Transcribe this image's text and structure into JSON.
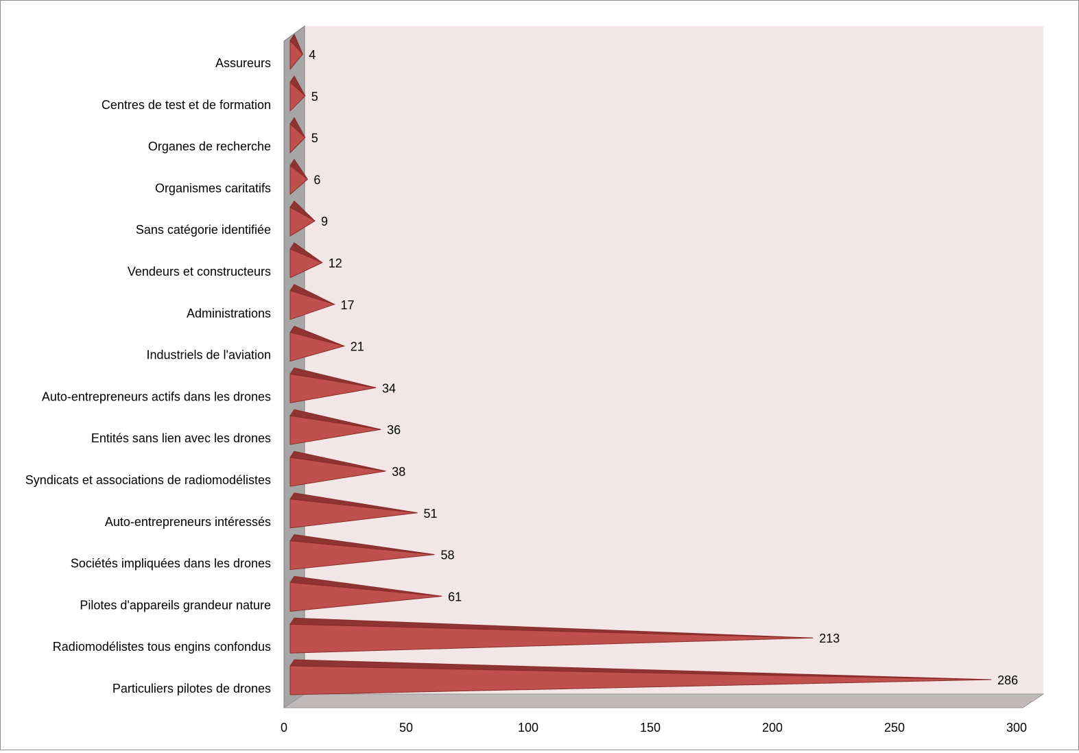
{
  "chart_data": {
    "type": "bar",
    "orientation": "horizontal",
    "style": "3d-cone",
    "title": "",
    "xlabel": "",
    "ylabel": "",
    "categories": [
      "Particuliers pilotes de drones",
      "Radiomodélistes tous engins confondus",
      "Pilotes d'appareils grandeur nature",
      "Sociétés impliquées dans les drones",
      "Auto-entrepreneurs intéressés",
      "Syndicats et associations de radiomodélistes",
      "Entités sans lien avec les drones",
      "Auto-entrepreneurs actifs dans les drones",
      "Industriels de l'aviation",
      "Administrations",
      "Vendeurs et constructeurs",
      "Sans catégorie identifiée",
      "Organismes caritatifs",
      "Organes de recherche",
      "Centres de test et de formation",
      "Assureurs"
    ],
    "values": [
      286,
      213,
      61,
      58,
      51,
      38,
      36,
      34,
      21,
      17,
      12,
      9,
      6,
      5,
      5,
      4
    ],
    "xlim": [
      0,
      300
    ],
    "xticks": [
      0,
      50,
      100,
      150,
      200,
      250,
      300
    ],
    "grid": false,
    "legend": "none",
    "colors": {
      "bar_fill": "#c0504d",
      "bar_top": "#8e3432",
      "bar_stroke": "#8a2a28",
      "plot_back_wall": "#f2e6e6",
      "side_wall": "#a6a6a6",
      "floor": "#bfb9ba"
    }
  }
}
